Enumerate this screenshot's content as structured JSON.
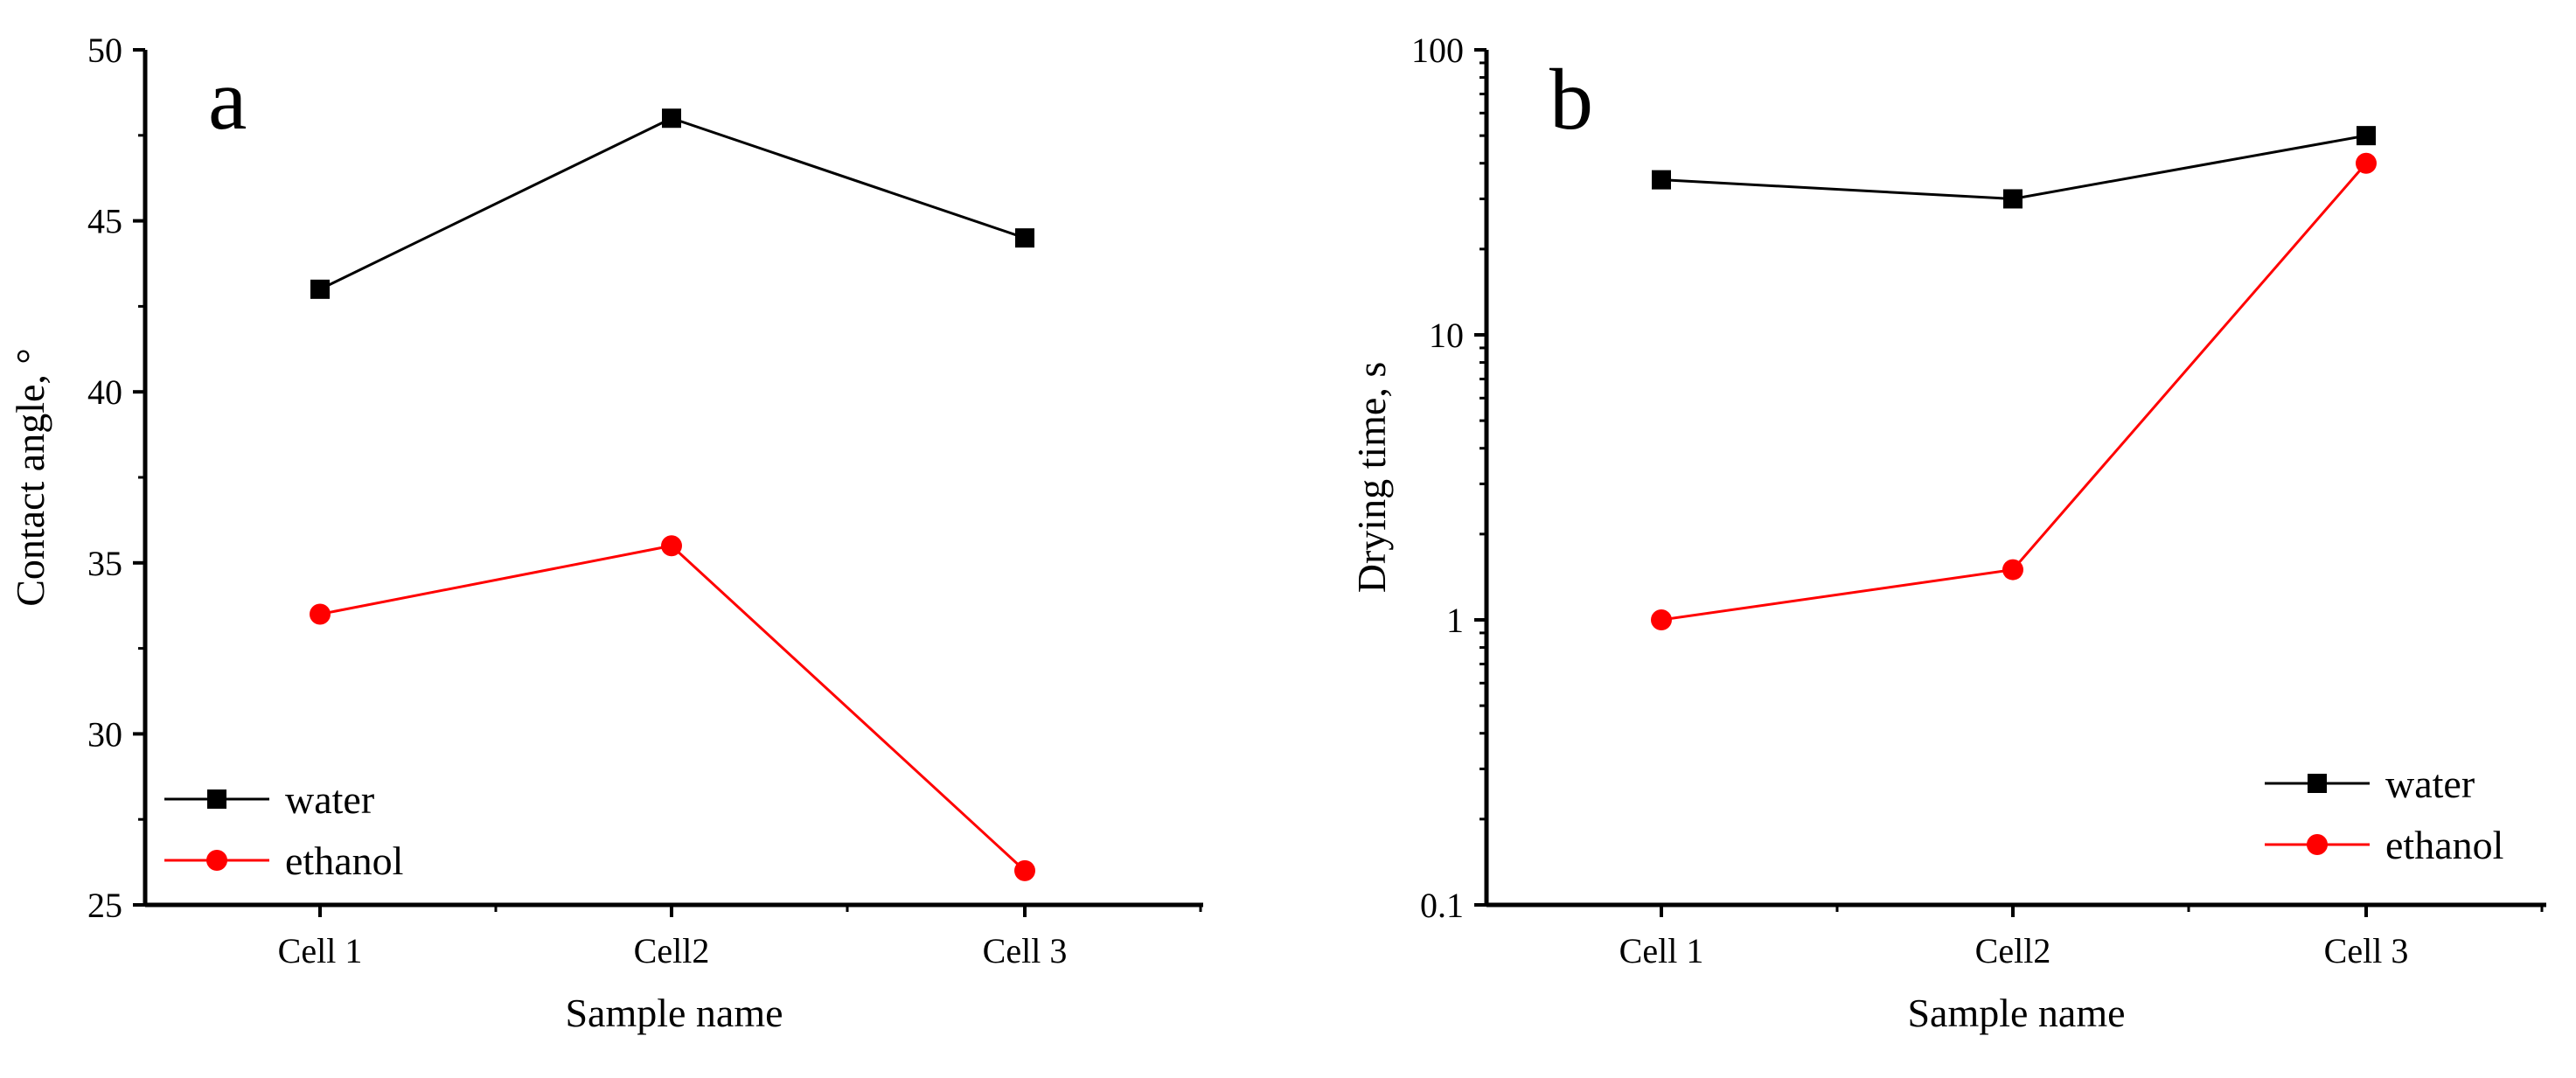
{
  "chart_data": [
    {
      "type": "line",
      "panel_label": "a",
      "title": "",
      "xlabel": "Sample name",
      "ylabel": "Contact angle, °",
      "y_scale": "linear",
      "ylim": [
        25,
        50
      ],
      "yticks": [
        25,
        30,
        35,
        40,
        45,
        50
      ],
      "categories": [
        "Cell 1",
        "Cell2",
        "Cell 3"
      ],
      "series": [
        {
          "name": "water",
          "marker": "square",
          "color": "#000000",
          "values": [
            43.0,
            48.0,
            44.5
          ]
        },
        {
          "name": "ethanol",
          "marker": "circle",
          "color": "#ff0000",
          "values": [
            33.5,
            35.5,
            26.0
          ]
        }
      ],
      "legend_position": "bottom-left"
    },
    {
      "type": "line",
      "panel_label": "b",
      "title": "",
      "xlabel": "Sample name",
      "ylabel": "Drying time, s",
      "y_scale": "log",
      "ylim": [
        0.1,
        100
      ],
      "yticks": [
        0.1,
        1,
        10,
        100
      ],
      "ytick_labels": [
        "0.1",
        "1",
        "10",
        "100"
      ],
      "categories": [
        "Cell 1",
        "Cell2",
        "Cell 3"
      ],
      "series": [
        {
          "name": "water",
          "marker": "square",
          "color": "#000000",
          "values": [
            35,
            30,
            50
          ]
        },
        {
          "name": "ethanol",
          "marker": "circle",
          "color": "#ff0000",
          "values": [
            1.0,
            1.5,
            40
          ]
        }
      ],
      "legend_position": "bottom-right"
    }
  ]
}
